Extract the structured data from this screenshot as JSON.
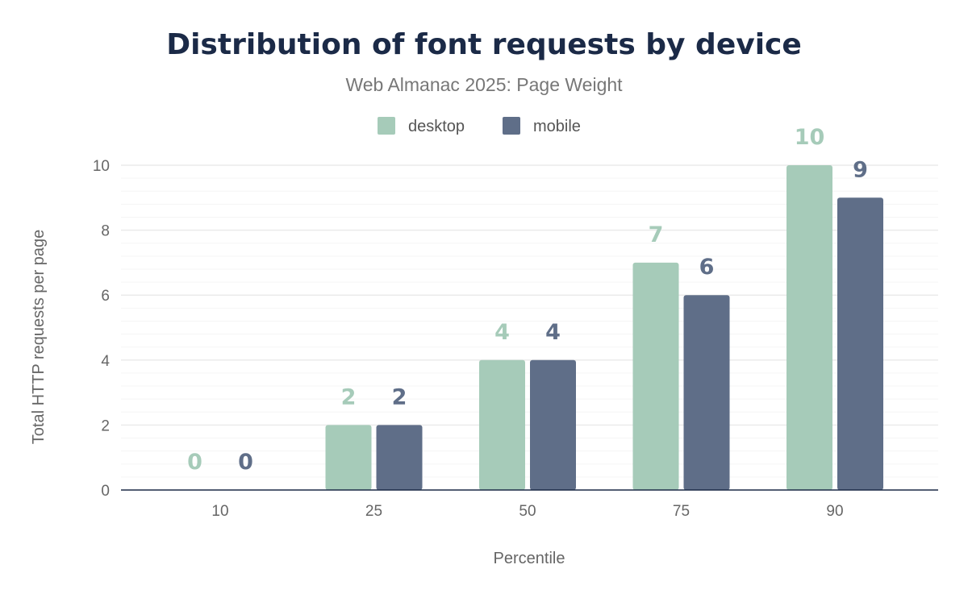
{
  "chart_data": {
    "type": "bar",
    "title": "Distribution of font requests by device",
    "subtitle": "Web Almanac 2025: Page Weight",
    "xlabel": "Percentile",
    "ylabel": "Total HTTP requests per page",
    "categories": [
      "10",
      "25",
      "50",
      "75",
      "90"
    ],
    "series": [
      {
        "name": "desktop",
        "values": [
          0,
          2,
          4,
          7,
          10
        ],
        "color": "#a6cbb9"
      },
      {
        "name": "mobile",
        "values": [
          0,
          2,
          4,
          6,
          9
        ],
        "color": "#5f6e88"
      }
    ],
    "ylim": [
      0,
      10
    ],
    "yticks": [
      "0",
      "2",
      "4",
      "6",
      "8",
      "10"
    ],
    "grid": true,
    "legend": "top-center",
    "data_labels": true
  }
}
